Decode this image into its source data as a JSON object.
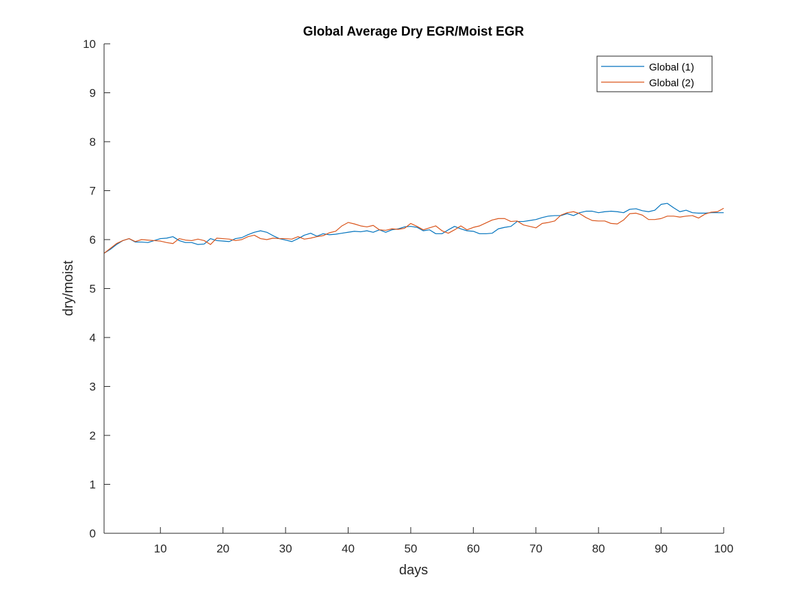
{
  "chart_data": {
    "type": "line",
    "title": "Global Average Dry EGR/Moist EGR",
    "xlabel": "days",
    "ylabel": "dry/moist",
    "xlim": [
      1,
      100
    ],
    "ylim": [
      0,
      10
    ],
    "xticks": [
      10,
      20,
      30,
      40,
      50,
      60,
      70,
      80,
      90,
      100
    ],
    "yticks": [
      0,
      1,
      2,
      3,
      4,
      5,
      6,
      7,
      8,
      9,
      10
    ],
    "grid": false,
    "legend_position": "top-right",
    "series": [
      {
        "name": "Global (1)",
        "color": "#0072BD",
        "values": [
          5.72,
          5.8,
          5.9,
          5.98,
          6.02,
          5.95,
          5.95,
          5.94,
          5.98,
          6.02,
          6.03,
          6.06,
          5.98,
          5.94,
          5.94,
          5.9,
          5.91,
          6.02,
          5.98,
          5.97,
          5.96,
          6.02,
          6.04,
          6.1,
          6.15,
          6.18,
          6.15,
          6.08,
          6.02,
          5.99,
          5.96,
          6.02,
          6.09,
          6.13,
          6.07,
          6.12,
          6.1,
          6.11,
          6.13,
          6.15,
          6.17,
          6.16,
          6.18,
          6.15,
          6.2,
          6.15,
          6.2,
          6.22,
          6.26,
          6.27,
          6.25,
          6.18,
          6.2,
          6.12,
          6.12,
          6.2,
          6.27,
          6.22,
          6.18,
          6.17,
          6.12,
          6.12,
          6.13,
          6.22,
          6.25,
          6.27,
          6.37,
          6.37,
          6.39,
          6.41,
          6.45,
          6.48,
          6.49,
          6.49,
          6.53,
          6.49,
          6.55,
          6.58,
          6.58,
          6.55,
          6.57,
          6.58,
          6.57,
          6.55,
          6.62,
          6.63,
          6.59,
          6.57,
          6.6,
          6.72,
          6.74,
          6.65,
          6.57,
          6.6,
          6.55,
          6.54,
          6.54,
          6.55,
          6.55,
          6.55
        ]
      },
      {
        "name": "Global (2)",
        "color": "#D95319",
        "values": [
          5.72,
          5.82,
          5.92,
          5.98,
          6.02,
          5.96,
          6.0,
          5.99,
          5.98,
          5.97,
          5.94,
          5.92,
          6.02,
          5.99,
          5.98,
          6.01,
          5.98,
          5.9,
          6.03,
          6.02,
          6.01,
          5.98,
          6.0,
          6.06,
          6.09,
          6.02,
          6.0,
          6.03,
          6.02,
          6.02,
          6.01,
          6.06,
          6.01,
          6.03,
          6.06,
          6.08,
          6.14,
          6.17,
          6.28,
          6.35,
          6.32,
          6.28,
          6.26,
          6.29,
          6.2,
          6.19,
          6.22,
          6.21,
          6.23,
          6.33,
          6.27,
          6.2,
          6.24,
          6.28,
          6.18,
          6.13,
          6.2,
          6.28,
          6.2,
          6.25,
          6.28,
          6.34,
          6.4,
          6.43,
          6.43,
          6.37,
          6.38,
          6.3,
          6.27,
          6.24,
          6.33,
          6.35,
          6.38,
          6.5,
          6.55,
          6.57,
          6.53,
          6.45,
          6.39,
          6.38,
          6.38,
          6.33,
          6.32,
          6.4,
          6.53,
          6.54,
          6.5,
          6.41,
          6.41,
          6.43,
          6.48,
          6.48,
          6.46,
          6.48,
          6.49,
          6.44,
          6.52,
          6.56,
          6.57,
          6.64
        ]
      }
    ]
  }
}
